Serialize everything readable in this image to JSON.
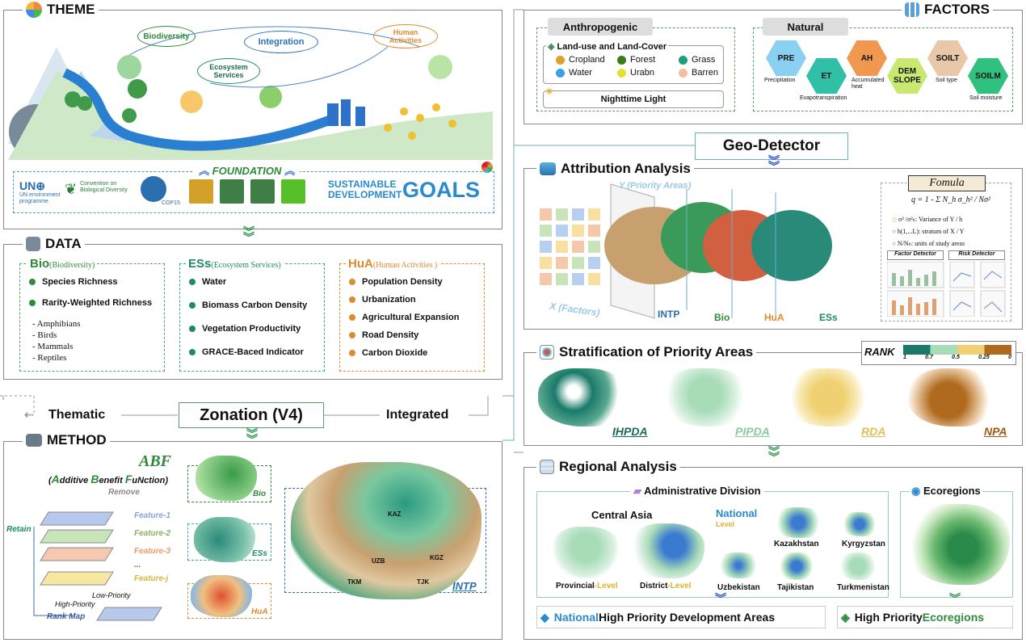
{
  "theme": {
    "title": "THEME",
    "nodes": {
      "biodiversity": "Biodiversity",
      "integration": "Integration",
      "human_activities": "Human Activities",
      "ecosystem_services": "Ecosystem Services"
    },
    "foundation": "FOUNDATION",
    "un_logo": "UN environment programme",
    "cbd": "Convention on Biological Diversity",
    "cop": "COP15",
    "sdg_line1": "SUSTAINABLE",
    "sdg_line2": "DEVELOPMENT",
    "sdg_goals": "GOALS"
  },
  "data": {
    "title": "DATA",
    "bio": {
      "head": "Bio",
      "sub": "(Biodiversity)",
      "items": [
        "Species Richness",
        "Rarity-Weighted Richness"
      ],
      "taxa": [
        "- Amphibians",
        "- Birds",
        "- Mammals",
        "- Reptiles"
      ]
    },
    "ess": {
      "head": "ESs",
      "sub": "(Ecosystem Services)",
      "items": [
        "Water",
        "Biomass Carbon Density",
        "Vegetation Productivity",
        "GRACE-Baced Indicator"
      ]
    },
    "hua": {
      "head": "HuA",
      "sub": "(Human Activities )",
      "items": [
        "Population Density",
        "Urbanization",
        "Agricultural Expansion",
        "Road Density",
        "Carbon Dioxide"
      ]
    }
  },
  "zonation": {
    "label": "Zonation (V4)",
    "left": "Thematic",
    "right": "Integrated"
  },
  "method": {
    "title": "METHOD",
    "abf": "ABF",
    "abf_full_open": "(",
    "abf_a": "A",
    "abf_rest1": "dditive ",
    "abf_b": "B",
    "abf_rest2": "enefit ",
    "abf_f": "F",
    "abf_rest3": "uNction)",
    "remove": "Remove",
    "retain": "Retain",
    "features": [
      "Feature-1",
      "Feature-2",
      "Feature-3",
      "...",
      "Feature-j"
    ],
    "low": "Low-Priority",
    "high": "High-Priority",
    "rank_map": "Rank Map",
    "maps": [
      "Bio",
      "ESs",
      "HuA"
    ],
    "big_map": "INTP",
    "countries": [
      "KAZ",
      "UZB",
      "KGZ",
      "TKM",
      "TJK"
    ]
  },
  "factors": {
    "title": "FACTORS",
    "anthro": {
      "title": "Anthropogenic",
      "lulc": "Land-use and Land-Cover",
      "classes": [
        {
          "name": "Cropland",
          "color": "#e0a030"
        },
        {
          "name": "Forest",
          "color": "#3a7a1a"
        },
        {
          "name": "Grass",
          "color": "#1aa080"
        },
        {
          "name": "Water",
          "color": "#3aa0e8"
        },
        {
          "name": "Urabn",
          "color": "#e8e030"
        },
        {
          "name": "Barren",
          "color": "#f0c0a0"
        }
      ],
      "ntl": "Nighttime Light"
    },
    "natural": {
      "title": "Natural",
      "hexes": [
        {
          "code": "PRE",
          "label": "Precipitation",
          "color": "#8ad0f0"
        },
        {
          "code": "ET",
          "label": "Evapotranspiration",
          "color": "#30c0a8"
        },
        {
          "code": "AH",
          "label": "Accumulated heat",
          "color": "#f09850"
        },
        {
          "code": "DEM SLOPE",
          "label": "",
          "color": "#c8e870"
        },
        {
          "code": "SOILT",
          "label": "Soil type",
          "color": "#e8c8a8"
        },
        {
          "code": "SOILM",
          "label": "Soil moisture",
          "color": "#30c080"
        }
      ]
    }
  },
  "geo_detector": "Geo-Detector",
  "attribution": {
    "title": "Attribution Analysis",
    "y_label": "Y (Priority Areas)",
    "x_label": "X (Factors)",
    "layers": [
      "INTP",
      "Bio",
      "HuA",
      "ESs"
    ],
    "formula_title": "Fomula",
    "formula": "q = 1 - Σ N_h σ_h² / Nσ²",
    "notes": [
      "σ² /σ²ₕ: Variance of Y / h",
      "h(1,...L): stratum of X / Y",
      "N/Nₕ: units of study areas"
    ],
    "detectors": [
      "Factor Detector",
      "Risk Detector"
    ]
  },
  "stratification": {
    "title": "Stratification of Priority Areas",
    "rank": "RANK",
    "ticks": [
      "1",
      "0.7",
      "0.5",
      "0.25",
      "0"
    ],
    "areas": [
      "IHPDA",
      "PIPDA",
      "RDA",
      "NPA"
    ]
  },
  "regional": {
    "title": "Regional Analysis",
    "admin": "Administrative Division",
    "central_asia": "Central Asia",
    "national": "National",
    "level": "Level",
    "provincial": "Provincial",
    "district": "District",
    "level_suffix": "-Level",
    "countries": [
      "Kazakhstan",
      "Kyrgyzstan",
      "Uzbekistan",
      "Tajikistan",
      "Turkmenistan"
    ],
    "ecoregions": "Ecoregions",
    "bottom_left_a": "National",
    "bottom_left_b": " High Priority Development Areas",
    "bottom_right_a": "High Priority ",
    "bottom_right_b": "Ecoregions"
  }
}
